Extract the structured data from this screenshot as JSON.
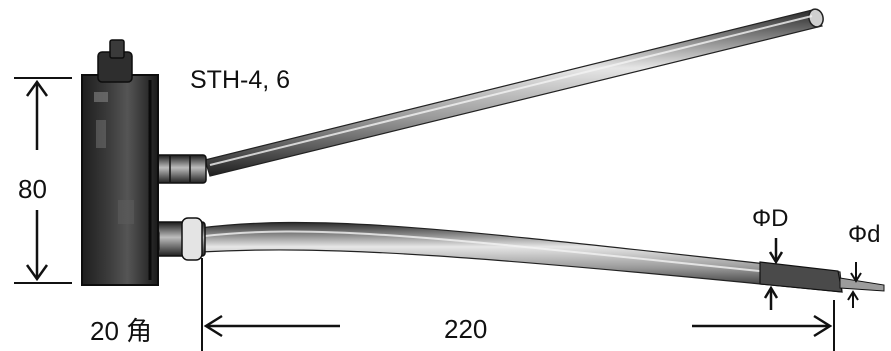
{
  "model": "STH-4, 6",
  "dimensions": {
    "height": "80",
    "block": "20 角",
    "length": "220",
    "outer_diameter": "ΦD",
    "inner_diameter": "Φd"
  },
  "colors": {
    "ink": "#111111",
    "block": "#2a2a2a",
    "rod_light": "#d8d8d8",
    "rod_dark": "#3a3a3a"
  }
}
